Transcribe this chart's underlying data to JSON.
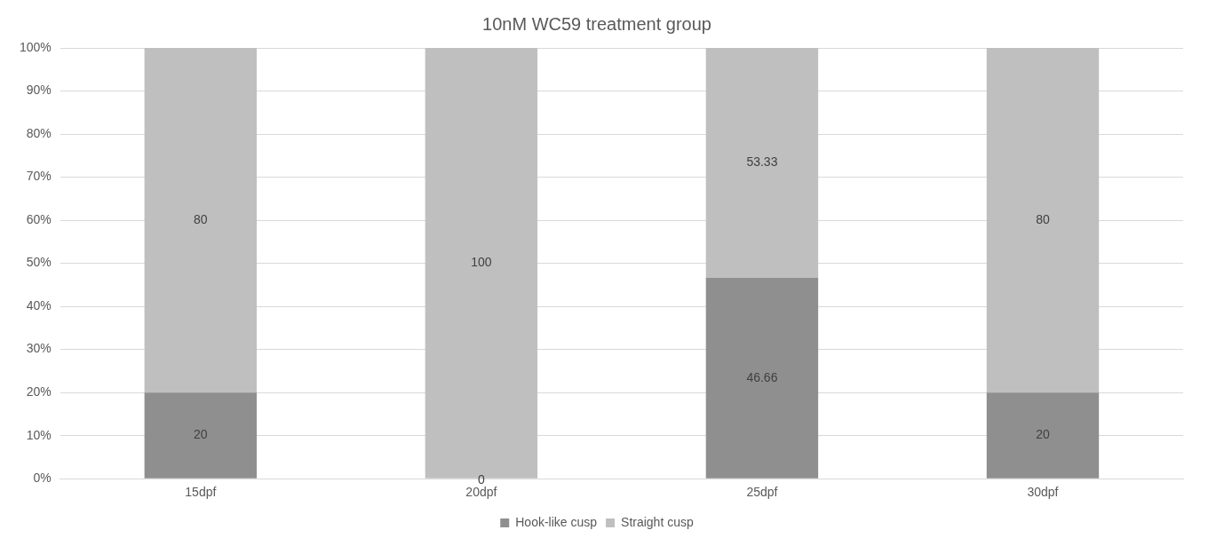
{
  "chart_data": {
    "type": "bar",
    "title": "10nM WC59 treatment group",
    "stacked": true,
    "categories": [
      "15dpf",
      "20dpf",
      "25dpf",
      "30dpf"
    ],
    "series": [
      {
        "name": "Hook-like cusp",
        "color": "#8f8f8f",
        "values": [
          20,
          0,
          46.66,
          20
        ],
        "value_labels": [
          "20",
          null,
          "46.66",
          "20"
        ]
      },
      {
        "name": "Straight cusp",
        "color": "#bfbfbf",
        "values": [
          80,
          100,
          53.33,
          80
        ],
        "value_labels": [
          "80",
          "100",
          "53.33",
          "80"
        ]
      }
    ],
    "annotations": [
      {
        "text": "0",
        "x": "20dpf",
        "y": 0
      }
    ],
    "ylim": [
      0,
      100
    ],
    "yticks": [
      {
        "value": 0,
        "label": "0%"
      },
      {
        "value": 10,
        "label": "10%"
      },
      {
        "value": 20,
        "label": "20%"
      },
      {
        "value": 30,
        "label": "30%"
      },
      {
        "value": 40,
        "label": "40%"
      },
      {
        "value": 50,
        "label": "50%"
      },
      {
        "value": 60,
        "label": "60%"
      },
      {
        "value": 70,
        "label": "70%"
      },
      {
        "value": 80,
        "label": "80%"
      },
      {
        "value": 90,
        "label": "90%"
      },
      {
        "value": 100,
        "label": "100%"
      }
    ],
    "grid": "y",
    "legend": "bottom"
  }
}
